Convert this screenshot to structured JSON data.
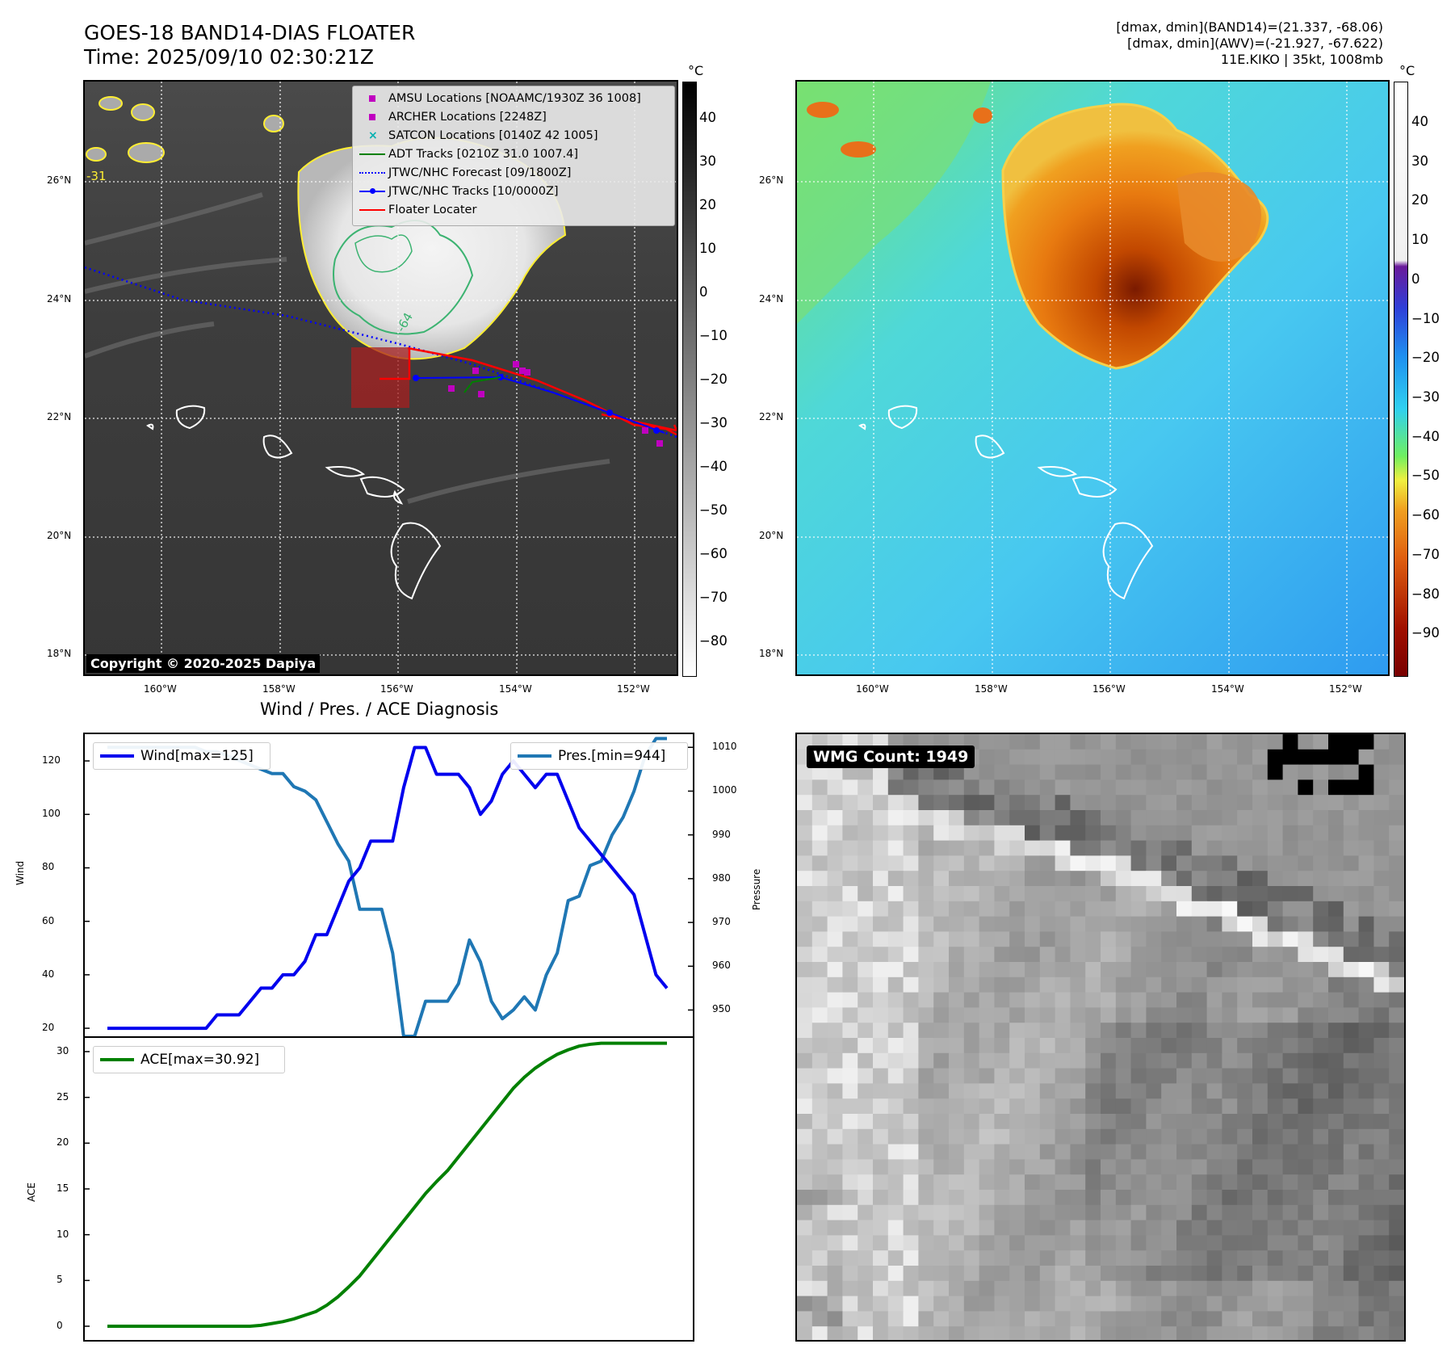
{
  "header": {
    "title_line1": "GOES-18 BAND14-DIAS FLOATER",
    "title_line2": "Time: 2025/09/10 02:30:21Z",
    "stats_line1": "[dmax, dmin](BAND14)=(21.337, -68.06)",
    "stats_line2": "[dmax, dmin](AWV)=(-21.927, -67.622)",
    "stats_line3": "11E.KIKO | 35kt, 1008mb"
  },
  "maps": {
    "lat_labels": [
      "26°N",
      "24°N",
      "22°N",
      "20°N",
      "18°N"
    ],
    "lon_labels": [
      "160°W",
      "158°W",
      "156°W",
      "154°W",
      "152°W"
    ],
    "contour_labels": [
      "-31",
      "-64"
    ],
    "copyright": "Copyright © 2020-2025 Dapiya",
    "colorbar_unit": "°C",
    "ir_colorbar_ticks": [
      "40",
      "30",
      "20",
      "10",
      "0",
      "−10",
      "−20",
      "−30",
      "−40",
      "−50",
      "−60",
      "−70",
      "−80"
    ],
    "awv_colorbar_ticks": [
      "40",
      "30",
      "20",
      "10",
      "0",
      "−10",
      "−20",
      "−30",
      "−40",
      "−50",
      "−60",
      "−70",
      "−80",
      "−90"
    ]
  },
  "legend": {
    "items": [
      {
        "label": "AMSU Locations [NOAAMC/1930Z 36 1008]",
        "color": "#c000c0",
        "marker": "square"
      },
      {
        "label": "ARCHER Locations [2248Z]",
        "color": "#c000c0",
        "marker": "square"
      },
      {
        "label": "SATCON Locations [0140Z 42 1005]",
        "color": "#00b0b0",
        "marker": "x"
      },
      {
        "label": "ADT Tracks [0210Z 31.0 1007.4]",
        "color": "#008000",
        "marker": "line"
      },
      {
        "label": "JTWC/NHC Forecast [09/1800Z]",
        "color": "#0000ff",
        "marker": "dotted"
      },
      {
        "label": "JTWC/NHC Tracks [10/0000Z]",
        "color": "#0000ff",
        "marker": "line-dot"
      },
      {
        "label": "Floater Locater",
        "color": "#ff0000",
        "marker": "line"
      }
    ]
  },
  "wmg": {
    "label": "WMG Count: 1949"
  },
  "chart_data": [
    {
      "type": "line",
      "title": "Wind / Pres. / ACE Diagnosis",
      "ylabel": "Wind",
      "y2label": "Pressure",
      "ylim": [
        17,
        130
      ],
      "y2lim": [
        944,
        1013
      ],
      "yticks": [
        20,
        40,
        60,
        80,
        100,
        120
      ],
      "y2ticks": [
        950,
        960,
        970,
        980,
        990,
        1000,
        1010
      ],
      "x": [
        0,
        1,
        2,
        3,
        4,
        5,
        6,
        7,
        8,
        9,
        10,
        11,
        12,
        13,
        14,
        15,
        16,
        17,
        18,
        19,
        20,
        21,
        22,
        23,
        24,
        25,
        26,
        27,
        28,
        29,
        30,
        31,
        32,
        33,
        34,
        35,
        36,
        37,
        38,
        39,
        40,
        41,
        42,
        43,
        44,
        45,
        46,
        47,
        48,
        49,
        50,
        51
      ],
      "series": [
        {
          "name": "Wind[max=125]",
          "axis": "left",
          "color": "#0000ee",
          "values": [
            20,
            20,
            20,
            20,
            20,
            20,
            20,
            20,
            20,
            20,
            25,
            25,
            25,
            30,
            35,
            35,
            40,
            40,
            45,
            55,
            55,
            65,
            75,
            80,
            90,
            90,
            90,
            110,
            125,
            125,
            115,
            115,
            115,
            110,
            100,
            105,
            115,
            120,
            115,
            110,
            115,
            115,
            105,
            95,
            90,
            85,
            80,
            75,
            70,
            55,
            40,
            35
          ]
        },
        {
          "name": "Pres.[min=944]",
          "axis": "right",
          "color": "#1f77b4",
          "values": [
            1010,
            1010,
            1010,
            1010,
            1010,
            1010,
            1010,
            1010,
            1010,
            1009,
            1009,
            1008,
            1007,
            1006,
            1005,
            1004,
            1004,
            1001,
            1000,
            998,
            993,
            988,
            984,
            973,
            973,
            973,
            963,
            944,
            944,
            952,
            952,
            952,
            956,
            966,
            961,
            952,
            948,
            950,
            953,
            950,
            958,
            963,
            975,
            976,
            983,
            984,
            990,
            994,
            1000,
            1008,
            1012,
            1012
          ]
        },
        {
          "name": "ACE[max=30.92]",
          "axis": "bottom",
          "color": "#008000",
          "ylim": [
            -1.5,
            31.5
          ],
          "yticks": [
            0,
            5,
            10,
            15,
            20,
            25,
            30
          ],
          "ylabel": "ACE",
          "values": [
            0,
            0,
            0,
            0,
            0,
            0,
            0,
            0,
            0,
            0,
            0,
            0,
            0,
            0,
            0.1,
            0.3,
            0.5,
            0.8,
            1.2,
            1.6,
            2.3,
            3.2,
            4.3,
            5.5,
            7.0,
            8.5,
            10.0,
            11.5,
            13.0,
            14.5,
            15.8,
            17.0,
            18.5,
            20.0,
            21.5,
            23.0,
            24.5,
            26.0,
            27.2,
            28.2,
            29.0,
            29.7,
            30.2,
            30.6,
            30.8,
            30.92,
            30.92,
            30.92,
            30.92,
            30.92,
            30.92,
            30.92
          ]
        }
      ]
    }
  ],
  "colors": {
    "ir_background": "#383838",
    "land_outline": "#ffffff",
    "coast_contour": "#ffee33",
    "floater_box": "#a82020"
  }
}
